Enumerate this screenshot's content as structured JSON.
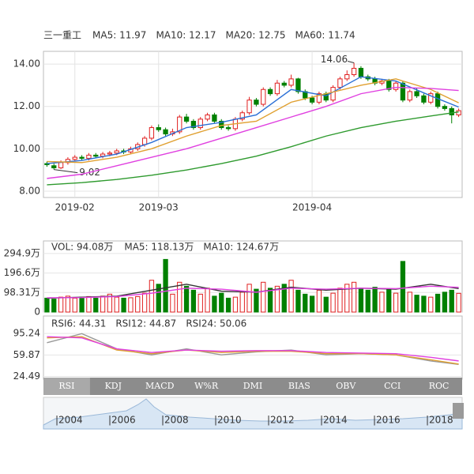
{
  "chart_data": [
    {
      "type": "candlestick",
      "title": "三一重工",
      "up_color": "#e02020",
      "down_color": "#008000",
      "grid": true,
      "xlim": [
        -0.5,
        59.5
      ],
      "xticks": [
        {
          "value": 4,
          "label": "2019-02"
        },
        {
          "value": 16,
          "label": "2019-03"
        },
        {
          "value": 38,
          "label": "2019-04"
        }
      ],
      "ylim": [
        7.7,
        14.6
      ],
      "yticks": [
        {
          "value": 14,
          "label": "14.00"
        },
        {
          "value": 12,
          "label": "12.00"
        },
        {
          "value": 10,
          "label": "10.00"
        },
        {
          "value": 8,
          "label": "8.00"
        }
      ],
      "open": [
        9.3,
        9.2,
        9.1,
        9.35,
        9.5,
        9.6,
        9.55,
        9.7,
        9.65,
        9.75,
        9.8,
        9.9,
        9.85,
        10.0,
        10.2,
        10.5,
        11.0,
        10.9,
        10.7,
        10.8,
        11.5,
        11.3,
        11.0,
        11.4,
        11.6,
        11.3,
        11.0,
        10.95,
        11.4,
        11.7,
        12.3,
        12.1,
        12.8,
        12.6,
        13.1,
        13.0,
        13.3,
        12.7,
        12.4,
        12.2,
        12.6,
        12.3,
        12.9,
        13.3,
        13.5,
        13.8,
        13.4,
        13.3,
        13.1,
        13.2,
        12.8,
        13.1,
        12.3,
        12.7,
        12.5,
        12.2,
        12.6,
        12.0,
        11.9,
        11.6
      ],
      "high": [
        9.4,
        9.3,
        9.45,
        9.6,
        9.7,
        9.7,
        9.8,
        9.8,
        9.85,
        9.9,
        10.0,
        10.0,
        10.1,
        10.3,
        10.6,
        11.1,
        11.15,
        11.0,
        10.95,
        11.6,
        11.65,
        11.4,
        11.5,
        11.7,
        11.7,
        11.4,
        11.1,
        11.5,
        11.8,
        12.45,
        12.4,
        12.9,
        12.9,
        13.25,
        13.2,
        13.5,
        13.35,
        12.8,
        12.5,
        12.7,
        12.7,
        13.0,
        13.4,
        13.7,
        14.06,
        13.9,
        13.5,
        13.4,
        13.3,
        13.3,
        13.2,
        13.2,
        12.8,
        12.85,
        12.6,
        12.7,
        12.7,
        12.1,
        12.0,
        11.9
      ],
      "low": [
        9.15,
        9.02,
        9.05,
        9.25,
        9.4,
        9.45,
        9.45,
        9.55,
        9.55,
        9.65,
        9.7,
        9.75,
        9.75,
        9.9,
        10.1,
        10.4,
        10.8,
        10.6,
        10.6,
        10.7,
        11.2,
        10.9,
        10.9,
        11.3,
        11.2,
        10.9,
        10.85,
        10.85,
        11.3,
        11.6,
        12.0,
        12.0,
        12.5,
        12.5,
        12.9,
        12.9,
        12.6,
        12.3,
        12.1,
        12.1,
        12.2,
        12.2,
        12.8,
        13.2,
        13.4,
        13.3,
        13.2,
        13.0,
        13.0,
        12.7,
        12.7,
        12.2,
        12.2,
        12.4,
        12.1,
        12.1,
        11.9,
        11.8,
        11.2,
        11.5
      ],
      "close": [
        9.25,
        9.1,
        9.35,
        9.5,
        9.6,
        9.55,
        9.7,
        9.65,
        9.75,
        9.8,
        9.9,
        9.85,
        10.0,
        10.2,
        10.5,
        11.0,
        10.9,
        10.7,
        10.8,
        11.5,
        11.3,
        11.0,
        11.4,
        11.6,
        11.3,
        11.0,
        10.95,
        11.4,
        11.7,
        12.3,
        12.1,
        12.8,
        12.6,
        13.1,
        13.0,
        13.3,
        12.7,
        12.4,
        12.2,
        12.6,
        12.3,
        12.9,
        13.3,
        13.5,
        13.8,
        13.4,
        13.3,
        13.1,
        13.2,
        12.8,
        13.1,
        12.3,
        12.7,
        12.5,
        12.2,
        12.6,
        12.0,
        11.9,
        11.6,
        11.8
      ],
      "series": [
        {
          "name": "MA5: 11.97",
          "color": "#2a6fd6",
          "x": [
            0,
            5,
            10,
            15,
            20,
            25,
            30,
            35,
            40,
            45,
            50,
            55,
            59
          ],
          "values": [
            9.3,
            9.45,
            9.75,
            10.3,
            11.0,
            11.25,
            11.6,
            12.8,
            12.5,
            13.4,
            13.2,
            12.5,
            11.97
          ]
        },
        {
          "name": "MA10: 12.17",
          "color": "#e0a030",
          "x": [
            0,
            5,
            10,
            15,
            20,
            25,
            30,
            35,
            40,
            45,
            50,
            55,
            59
          ],
          "values": [
            9.4,
            9.35,
            9.6,
            10.0,
            10.6,
            11.1,
            11.3,
            12.2,
            12.6,
            13.0,
            13.3,
            12.8,
            12.17
          ]
        },
        {
          "name": "MA20: 12.75",
          "color": "#e040e0",
          "x": [
            0,
            5,
            10,
            15,
            20,
            25,
            30,
            35,
            40,
            45,
            50,
            55,
            59
          ],
          "values": [
            8.6,
            8.8,
            9.2,
            9.6,
            10.0,
            10.5,
            11.0,
            11.5,
            12.0,
            12.6,
            12.9,
            12.85,
            12.75
          ]
        },
        {
          "name": "MA60: 11.74",
          "color": "#2e9a2e",
          "x": [
            0,
            5,
            10,
            15,
            20,
            25,
            30,
            35,
            40,
            45,
            50,
            55,
            59
          ],
          "values": [
            8.3,
            8.4,
            8.55,
            8.75,
            9.0,
            9.3,
            9.65,
            10.1,
            10.6,
            11.0,
            11.3,
            11.55,
            11.74
          ]
        }
      ]
    },
    {
      "type": "bar",
      "title": "VOL: 94.08万",
      "title_color": "#d040d0",
      "grid": true,
      "xlim": [
        -0.5,
        59.5
      ],
      "ylim": [
        0,
        358
      ],
      "yticks": [
        {
          "value": 294.9,
          "label": "294.9万"
        },
        {
          "value": 196.6,
          "label": "196.6万"
        },
        {
          "value": 98.31,
          "label": "98.31万"
        },
        0
      ],
      "values": [
        70,
        65,
        75,
        80,
        70,
        75,
        78,
        70,
        80,
        90,
        75,
        70,
        72,
        78,
        95,
        160,
        140,
        265,
        90,
        150,
        130,
        110,
        90,
        120,
        80,
        95,
        70,
        75,
        100,
        140,
        115,
        150,
        120,
        130,
        140,
        160,
        110,
        90,
        80,
        110,
        75,
        95,
        120,
        140,
        150,
        120,
        110,
        125,
        100,
        115,
        95,
        255,
        100,
        85,
        80,
        75,
        90,
        100,
        110,
        94.08
      ],
      "series": [
        {
          "name": "MA5: 118.13万",
          "color": "#333333",
          "x": [
            0,
            5,
            10,
            15,
            20,
            25,
            30,
            35,
            40,
            45,
            50,
            55,
            59
          ],
          "values": [
            70,
            75,
            80,
            110,
            140,
            105,
            100,
            125,
            110,
            120,
            115,
            140,
            118.13
          ]
        },
        {
          "name": "MA10: 124.67万",
          "color": "#e040e0",
          "x": [
            0,
            5,
            10,
            15,
            20,
            25,
            30,
            35,
            40,
            45,
            50,
            55,
            59
          ],
          "values": [
            72,
            73,
            78,
            95,
            120,
            115,
            100,
            120,
            115,
            120,
            118,
            130,
            124.67
          ]
        }
      ]
    },
    {
      "type": "line",
      "grid": true,
      "xlim": [
        -0.5,
        59.5
      ],
      "ylim": [
        20,
        124
      ],
      "yticks": [
        95.24,
        59.87,
        24.49
      ],
      "series": [
        {
          "name": "RSI6: 44.31",
          "color": "#999999",
          "x": [
            0,
            5,
            10,
            15,
            20,
            25,
            30,
            35,
            40,
            45,
            50,
            55,
            59
          ],
          "values": [
            80,
            95,
            70,
            60,
            70,
            60,
            65,
            68,
            60,
            62,
            60,
            50,
            44.31
          ]
        },
        {
          "name": "RSI12: 44.87",
          "color": "#e0a030",
          "x": [
            0,
            5,
            10,
            15,
            20,
            25,
            30,
            35,
            40,
            45,
            50,
            55,
            59
          ],
          "values": [
            88,
            90,
            68,
            62,
            68,
            64,
            66,
            66,
            62,
            62,
            60,
            52,
            44.87
          ]
        },
        {
          "name": "RSI24: 50.06",
          "color": "#e040e0",
          "x": [
            0,
            5,
            10,
            15,
            20,
            25,
            30,
            35,
            40,
            45,
            50,
            55,
            59
          ],
          "values": [
            90,
            88,
            70,
            64,
            68,
            66,
            67,
            67,
            64,
            63,
            62,
            56,
            50.06
          ]
        }
      ]
    }
  ],
  "tabs": [
    "RSI",
    "KDJ",
    "MACD",
    "W%R",
    "DMI",
    "BIAS",
    "OBV",
    "CCI",
    "ROC"
  ],
  "timeline": [
    "|2004",
    "|2006",
    "|2008",
    "|2010",
    "|2012",
    "|2014",
    "|2016",
    "|2018"
  ]
}
